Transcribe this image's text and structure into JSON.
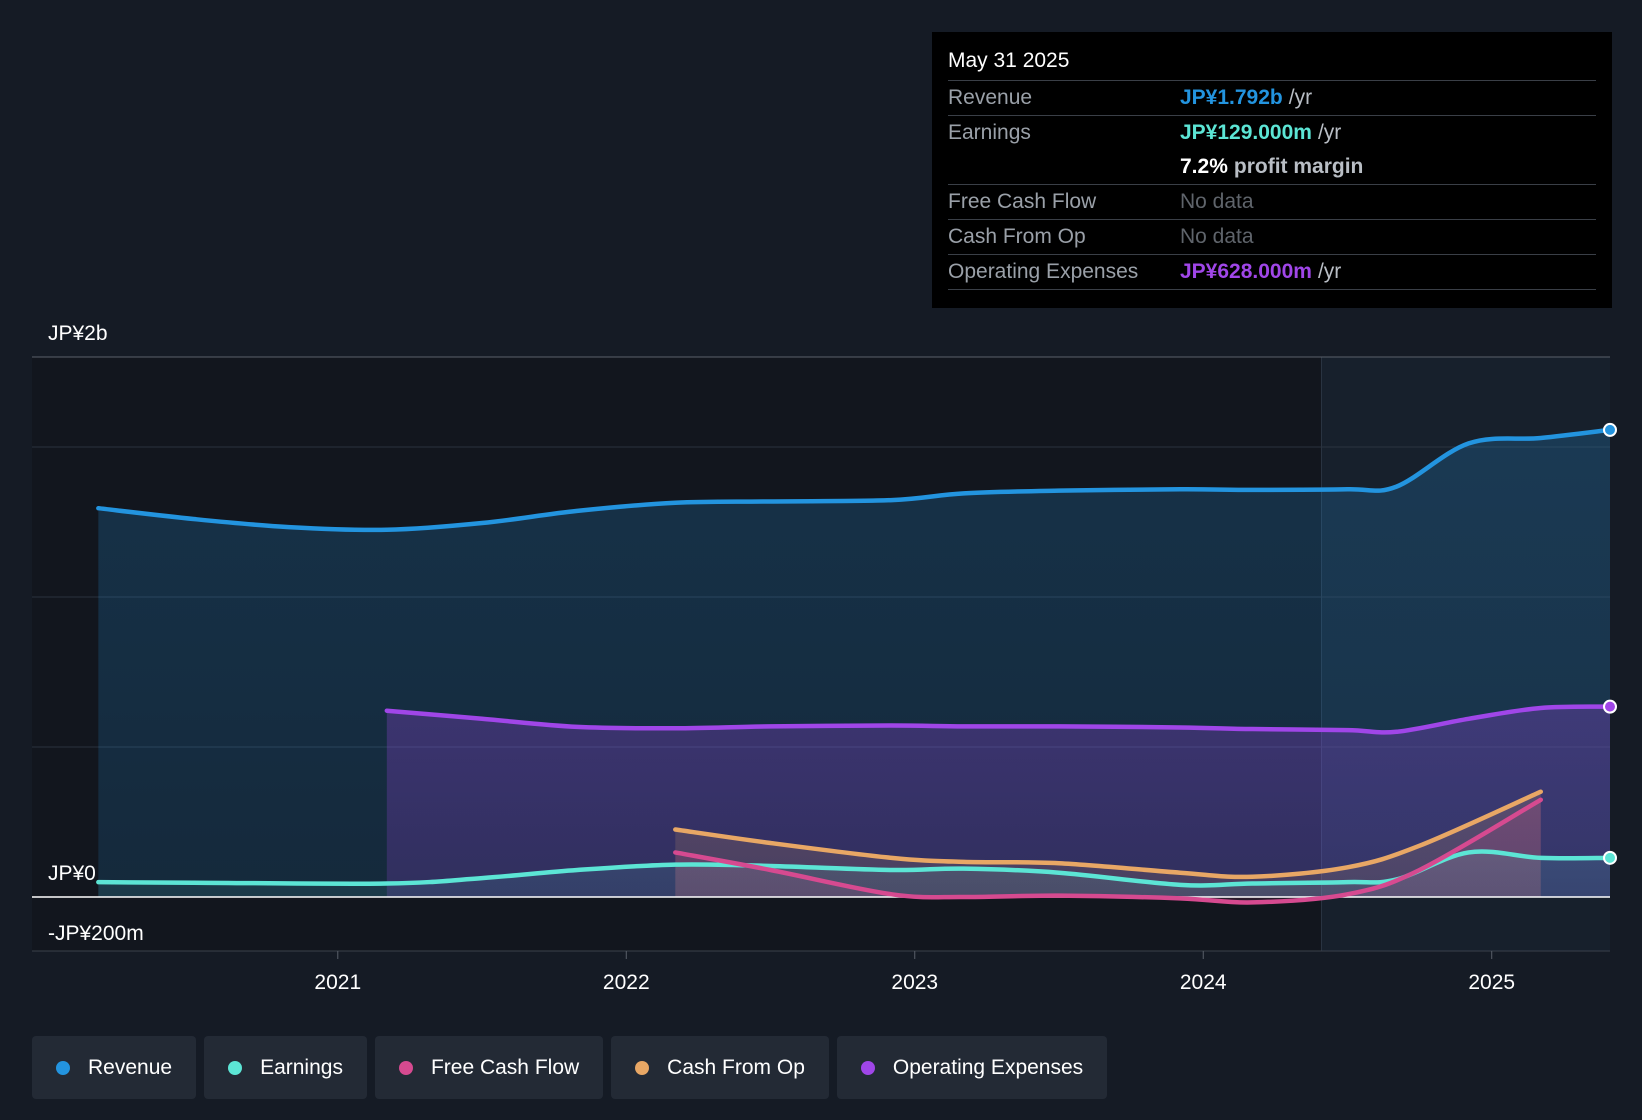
{
  "chart_data": {
    "type": "area",
    "y_labels": {
      "top": "JP¥2b",
      "zero": "JP¥0",
      "bottom": "-JP¥200m"
    },
    "ylim": [
      -200,
      2000
    ],
    "x_ticks": [
      {
        "label": "2021",
        "x": 2021.0
      },
      {
        "label": "2022",
        "x": 2022.0
      },
      {
        "label": "2023",
        "x": 2023.0
      },
      {
        "label": "2024",
        "x": 2024.0
      },
      {
        "label": "2025",
        "x": 2025.0
      }
    ],
    "xlim": [
      2019.94,
      2025.41
    ],
    "highlight_start": 2024.41,
    "grid": true,
    "legend_position": "bottom-left",
    "series": [
      {
        "name": "Revenue",
        "color": "#2394df",
        "unit": "JP¥m",
        "points": [
          [
            2020.17,
            1440
          ],
          [
            2020.5,
            1400
          ],
          [
            2020.83,
            1370
          ],
          [
            2021.17,
            1360
          ],
          [
            2021.5,
            1385
          ],
          [
            2021.83,
            1430
          ],
          [
            2022.17,
            1460
          ],
          [
            2022.5,
            1465
          ],
          [
            2022.92,
            1470
          ],
          [
            2023.17,
            1495
          ],
          [
            2023.5,
            1505
          ],
          [
            2023.92,
            1510
          ],
          [
            2024.17,
            1508
          ],
          [
            2024.5,
            1510
          ],
          [
            2024.67,
            1520
          ],
          [
            2024.92,
            1680
          ],
          [
            2025.17,
            1700
          ],
          [
            2025.41,
            1730
          ]
        ]
      },
      {
        "name": "Earnings",
        "color": "#5ce5d5",
        "unit": "JP¥m",
        "points": [
          [
            2020.17,
            55
          ],
          [
            2020.5,
            53
          ],
          [
            2021.17,
            50
          ],
          [
            2021.5,
            70
          ],
          [
            2021.83,
            100
          ],
          [
            2022.17,
            120
          ],
          [
            2022.5,
            115
          ],
          [
            2022.92,
            100
          ],
          [
            2023.17,
            105
          ],
          [
            2023.5,
            90
          ],
          [
            2023.92,
            45
          ],
          [
            2024.17,
            50
          ],
          [
            2024.5,
            55
          ],
          [
            2024.67,
            65
          ],
          [
            2024.92,
            165
          ],
          [
            2025.17,
            145
          ],
          [
            2025.41,
            145
          ]
        ]
      },
      {
        "name": "Free Cash Flow",
        "color": "#d64a90",
        "unit": "JP¥m",
        "points": [
          [
            2022.17,
            165
          ],
          [
            2022.5,
            100
          ],
          [
            2022.92,
            10
          ],
          [
            2023.17,
            0
          ],
          [
            2023.5,
            5
          ],
          [
            2023.92,
            -5
          ],
          [
            2024.17,
            -20
          ],
          [
            2024.5,
            10
          ],
          [
            2024.75,
            100
          ],
          [
            2025.17,
            360
          ]
        ]
      },
      {
        "name": "Cash From Op",
        "color": "#e8a765",
        "unit": "JP¥m",
        "points": [
          [
            2022.17,
            250
          ],
          [
            2022.5,
            200
          ],
          [
            2022.92,
            145
          ],
          [
            2023.17,
            130
          ],
          [
            2023.5,
            125
          ],
          [
            2023.92,
            90
          ],
          [
            2024.17,
            75
          ],
          [
            2024.5,
            110
          ],
          [
            2024.75,
            190
          ],
          [
            2025.17,
            390
          ]
        ]
      },
      {
        "name": "Operating Expenses",
        "color": "#a046e8",
        "unit": "JP¥m",
        "points": [
          [
            2021.17,
            690
          ],
          [
            2021.5,
            660
          ],
          [
            2021.83,
            630
          ],
          [
            2022.17,
            625
          ],
          [
            2022.5,
            632
          ],
          [
            2022.92,
            635
          ],
          [
            2023.17,
            632
          ],
          [
            2023.5,
            632
          ],
          [
            2023.92,
            628
          ],
          [
            2024.17,
            622
          ],
          [
            2024.5,
            618
          ],
          [
            2024.67,
            612
          ],
          [
            2024.92,
            660
          ],
          [
            2025.17,
            700
          ],
          [
            2025.41,
            705
          ]
        ]
      }
    ]
  },
  "tooltip": {
    "date": "May 31 2025",
    "rows": [
      {
        "label": "Revenue",
        "value": "JP¥1.792b",
        "unit": "/yr",
        "color": "#2394df"
      },
      {
        "label": "Earnings",
        "value": "JP¥129.000m",
        "unit": "/yr",
        "color": "#5ce5d5"
      },
      {
        "label": "",
        "value": "7.2%",
        "unit": "profit margin",
        "color": "#ffffff"
      },
      {
        "label": "Free Cash Flow",
        "value": "No data",
        "unit": "",
        "color": null
      },
      {
        "label": "Cash From Op",
        "value": "No data",
        "unit": "",
        "color": null
      },
      {
        "label": "Operating Expenses",
        "value": "JP¥628.000m",
        "unit": "/yr",
        "color": "#a046e8"
      }
    ]
  },
  "legend": [
    {
      "label": "Revenue",
      "color": "#2394df"
    },
    {
      "label": "Earnings",
      "color": "#5ce5d5"
    },
    {
      "label": "Free Cash Flow",
      "color": "#d64a90"
    },
    {
      "label": "Cash From Op",
      "color": "#e8a765"
    },
    {
      "label": "Operating Expenses",
      "color": "#a046e8"
    }
  ]
}
